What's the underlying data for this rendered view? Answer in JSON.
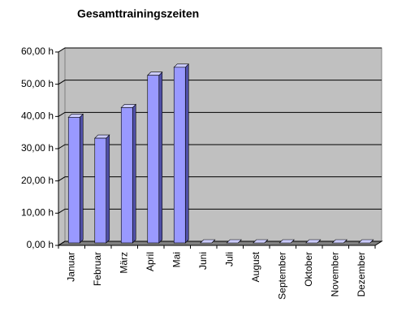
{
  "chart_data": {
    "type": "bar",
    "title": "Gesamttrainingszeiten",
    "categories": [
      "Januar",
      "Februar",
      "März",
      "April",
      "Mai",
      "Juni",
      "Juli",
      "August",
      "September",
      "Oktober",
      "November",
      "Dezember"
    ],
    "values": [
      39,
      32.5,
      42,
      52,
      54.5,
      0,
      0,
      0,
      0,
      0,
      0,
      0
    ],
    "color": "#9999ff",
    "ylim": [
      0,
      60
    ],
    "yticks": [
      {
        "value": 0,
        "label": "0,00 h"
      },
      {
        "value": 10,
        "label": "10,00 h"
      },
      {
        "value": 20,
        "label": "20,00 h"
      },
      {
        "value": 30,
        "label": "30,00 h"
      },
      {
        "value": 40,
        "label": "40,00 h"
      },
      {
        "value": 50,
        "label": "50,00 h"
      },
      {
        "value": 60,
        "label": "60,00 h"
      }
    ],
    "grid": true
  }
}
